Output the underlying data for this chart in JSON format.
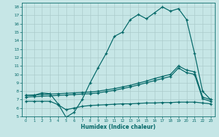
{
  "xlabel": "Humidex (Indice chaleur)",
  "bg_color": "#c6e6e6",
  "line_color": "#006666",
  "grid_color": "#aacaca",
  "xlim": [
    -0.5,
    23.5
  ],
  "ylim": [
    5,
    18.5
  ],
  "xticks": [
    0,
    1,
    2,
    3,
    4,
    5,
    6,
    7,
    8,
    9,
    10,
    11,
    12,
    13,
    14,
    15,
    16,
    17,
    18,
    19,
    20,
    21,
    22,
    23
  ],
  "yticks": [
    5,
    6,
    7,
    8,
    9,
    10,
    11,
    12,
    13,
    14,
    15,
    16,
    17,
    18
  ],
  "line1_x": [
    0,
    1,
    2,
    3,
    4,
    5,
    6,
    7,
    8,
    9,
    10,
    11,
    12,
    13,
    14,
    15,
    16,
    17,
    18,
    19,
    20,
    21,
    22,
    23
  ],
  "line1_y": [
    7.5,
    7.5,
    7.8,
    7.7,
    6.5,
    4.9,
    5.5,
    7.0,
    9.0,
    10.8,
    12.5,
    14.5,
    15.0,
    16.5,
    17.1,
    16.6,
    17.3,
    18.0,
    17.5,
    17.8,
    16.5,
    12.5,
    8.0,
    7.0
  ],
  "line2_x": [
    0,
    1,
    2,
    3,
    4,
    5,
    6,
    7,
    8,
    9,
    10,
    11,
    12,
    13,
    14,
    15,
    16,
    17,
    18,
    19,
    20,
    21,
    22,
    23
  ],
  "line2_y": [
    7.5,
    7.55,
    7.6,
    7.65,
    7.7,
    7.75,
    7.8,
    7.85,
    7.9,
    8.0,
    8.15,
    8.3,
    8.5,
    8.7,
    8.95,
    9.2,
    9.5,
    9.75,
    10.0,
    11.0,
    10.5,
    10.3,
    7.3,
    7.0
  ],
  "line3_x": [
    0,
    1,
    2,
    3,
    4,
    5,
    6,
    7,
    8,
    9,
    10,
    11,
    12,
    13,
    14,
    15,
    16,
    17,
    18,
    19,
    20,
    21,
    22,
    23
  ],
  "line3_y": [
    7.3,
    7.35,
    7.4,
    7.45,
    7.5,
    7.55,
    7.6,
    7.65,
    7.7,
    7.8,
    7.95,
    8.1,
    8.3,
    8.5,
    8.75,
    9.0,
    9.25,
    9.5,
    9.75,
    10.75,
    10.2,
    10.0,
    7.1,
    6.8
  ],
  "line4_x": [
    0,
    1,
    2,
    3,
    4,
    5,
    6,
    7,
    8,
    9,
    10,
    11,
    12,
    13,
    14,
    15,
    16,
    17,
    18,
    19,
    20,
    21,
    22,
    23
  ],
  "line4_y": [
    6.8,
    6.8,
    6.8,
    6.8,
    6.4,
    5.8,
    6.0,
    6.2,
    6.3,
    6.35,
    6.4,
    6.45,
    6.5,
    6.5,
    6.55,
    6.6,
    6.6,
    6.65,
    6.65,
    6.7,
    6.7,
    6.7,
    6.6,
    6.5
  ]
}
